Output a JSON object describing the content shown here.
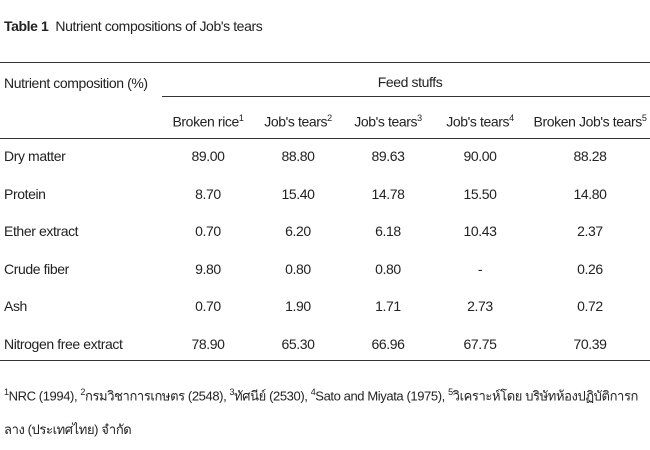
{
  "title": {
    "label": "Table 1",
    "text": "Nutrient compositions of Job's tears"
  },
  "table": {
    "row_header": "Nutrient composition (%)",
    "group_header": "Feed stuffs",
    "columns": [
      {
        "name": "Broken rice",
        "note": "1"
      },
      {
        "name": "Job's tears",
        "note": "2"
      },
      {
        "name": "Job's tears",
        "note": "3"
      },
      {
        "name": "Job's tears",
        "note": "4"
      },
      {
        "name": "Broken Job's tears",
        "note": "5"
      }
    ],
    "rows": [
      {
        "name": "Dry matter",
        "cells": [
          "89.00",
          "88.80",
          "89.63",
          "90.00",
          "88.28"
        ]
      },
      {
        "name": "Protein",
        "cells": [
          "8.70",
          "15.40",
          "14.78",
          "15.50",
          "14.80"
        ]
      },
      {
        "name": "Ether extract",
        "cells": [
          "0.70",
          "6.20",
          "6.18",
          "10.43",
          "2.37"
        ]
      },
      {
        "name": "Crude fiber",
        "cells": [
          "9.80",
          "0.80",
          "0.80",
          "-",
          "0.26"
        ]
      },
      {
        "name": "Ash",
        "cells": [
          "0.70",
          "1.90",
          "1.71",
          "2.73",
          "0.72"
        ]
      },
      {
        "name": "Nitrogen free extract",
        "cells": [
          "78.90",
          "65.30",
          "66.96",
          "67.75",
          "70.39"
        ]
      }
    ]
  },
  "footnotes": [
    {
      "note": "1",
      "text": "NRC (1994), "
    },
    {
      "note": "2",
      "text": "กรมวิชาการเกษตร (2548), "
    },
    {
      "note": "3",
      "text": "ทัศนีย์ (2530), "
    },
    {
      "note": "4",
      "text": "Sato and Miyata (1975), "
    },
    {
      "note": "5",
      "text": "วิเคราะห์โดย บริษัทห้องปฏิบัติการกลาง (ประเทศไทย) จำกัด"
    }
  ]
}
